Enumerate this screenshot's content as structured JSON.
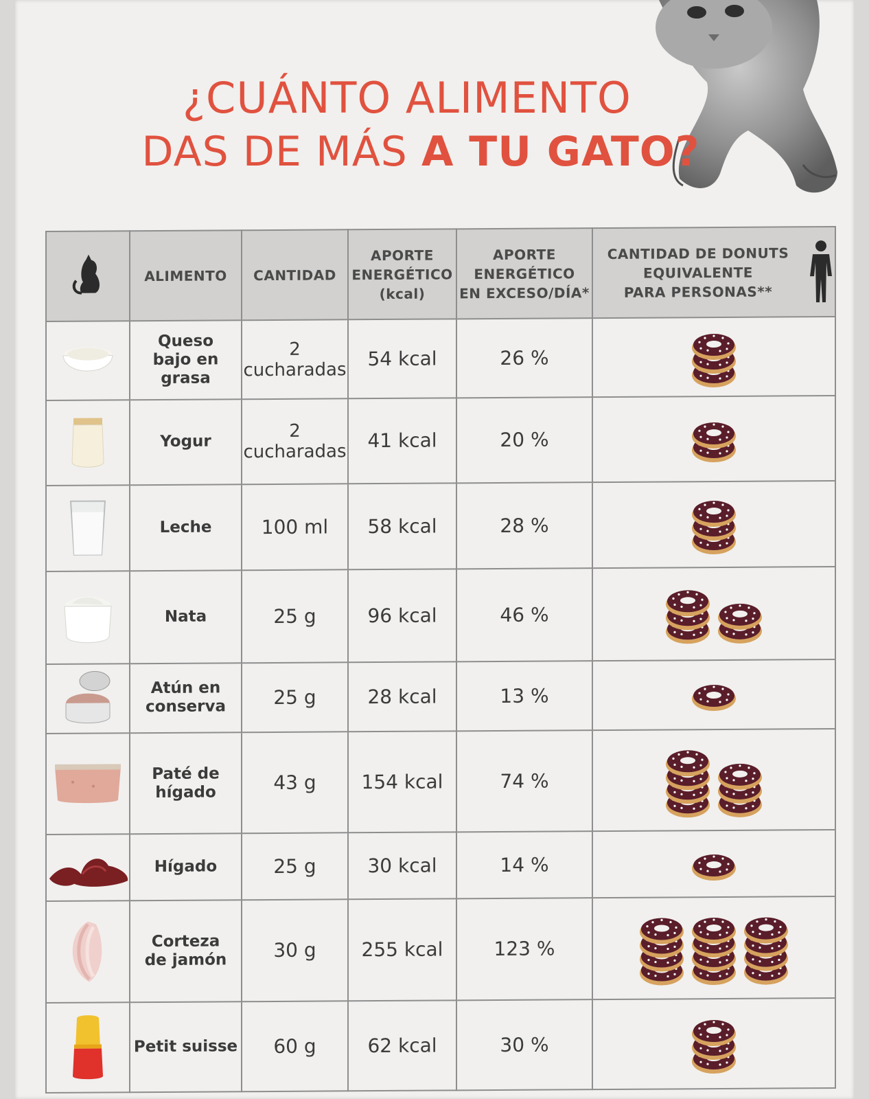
{
  "title": {
    "line1": "¿CUÁNTO ALIMENTO",
    "line2_prefix": "DAS DE MÁS ",
    "line2_bold": "A TU GATO?"
  },
  "headers": {
    "alimento": "ALIMENTO",
    "cantidad": "CANTIDAD",
    "aporte_line1": "APORTE",
    "aporte_line2": "ENERGÉTICO",
    "aporte_line3": "(kcal)",
    "exceso_line1": "APORTE",
    "exceso_line2": "ENERGÉTICO",
    "exceso_line3": "EN EXCESO/DÍA*",
    "donuts_line1": "CANTIDAD DE DONUTS",
    "donuts_line2": "EQUIVALENTE",
    "donuts_line3": "PARA PERSONAS**"
  },
  "icons": {
    "header_left": "cat-silhouette-icon",
    "header_right": "person-silhouette-icon",
    "donut": "donut-icon"
  },
  "colors": {
    "title": "#e0523f",
    "header_bg": "#d2d1cf",
    "donut_chocolate": "#5a1d2a",
    "donut_dough": "#d6a25e"
  },
  "rows": [
    {
      "name1": "Queso",
      "name2": "bajo en grasa",
      "qty1": "2",
      "qty2": "cucharadas",
      "kcal": "54 kcal",
      "pct": "26 %",
      "stacks": [
        3
      ],
      "food_icon": "cheese-bowl-icon"
    },
    {
      "name1": "Yogur",
      "name2": "",
      "qty1": "2",
      "qty2": "cucharadas",
      "kcal": "41 kcal",
      "pct": "20 %",
      "stacks": [
        2
      ],
      "food_icon": "yogurt-jar-icon"
    },
    {
      "name1": "Leche",
      "name2": "",
      "qty1": "100 ml",
      "qty2": "",
      "kcal": "58 kcal",
      "pct": "28 %",
      "stacks": [
        3
      ],
      "food_icon": "milk-glass-icon"
    },
    {
      "name1": "Nata",
      "name2": "",
      "qty1": "25 g",
      "qty2": "",
      "kcal": "96 kcal",
      "pct": "46 %",
      "stacks": [
        3,
        2
      ],
      "food_icon": "cream-bowl-icon"
    },
    {
      "name1": "Atún en",
      "name2": "conserva",
      "qty1": "25 g",
      "qty2": "",
      "kcal": "28 kcal",
      "pct": "13 %",
      "stacks": [
        1
      ],
      "food_icon": "tuna-can-icon"
    },
    {
      "name1": "Paté de",
      "name2": "hígado",
      "qty1": "43 g",
      "qty2": "",
      "kcal": "154 kcal",
      "pct": "74 %",
      "stacks": [
        4,
        3
      ],
      "food_icon": "pate-icon"
    },
    {
      "name1": "Hígado",
      "name2": "",
      "qty1": "25 g",
      "qty2": "",
      "kcal": "30 kcal",
      "pct": "14 %",
      "stacks": [
        1
      ],
      "food_icon": "liver-icon"
    },
    {
      "name1": "Corteza",
      "name2": "de jamón",
      "qty1": "30 g",
      "qty2": "",
      "kcal": "255 kcal",
      "pct": "123 %",
      "stacks": [
        4,
        4,
        4
      ],
      "food_icon": "ham-rind-icon"
    },
    {
      "name1": "Petit suisse",
      "name2": "",
      "qty1": "60 g",
      "qty2": "",
      "kcal": "62 kcal",
      "pct": "30 %",
      "stacks": [
        3
      ],
      "food_icon": "petit-suisse-icon"
    }
  ]
}
